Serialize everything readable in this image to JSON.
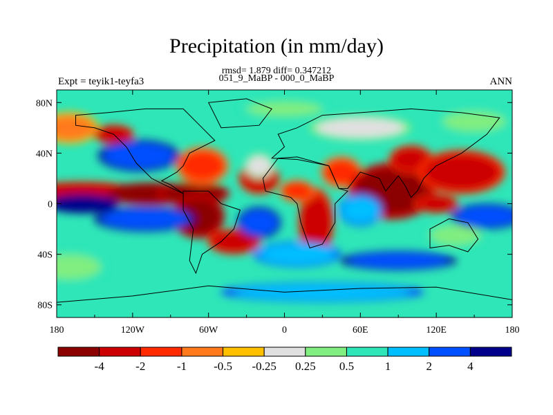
{
  "title": "Precipitation (in mm/day)",
  "stats_line": "rmsd= 1.879 diff= 0.347212",
  "period_line": "051_9_MaBP - 000_0_MaBP",
  "experiment_label": "Expt = teyik1-teyfa3",
  "season_label": "ANN",
  "lat_ticks": [
    "80N",
    "40N",
    "0",
    "40S",
    "80S"
  ],
  "lon_ticks": [
    "180",
    "120W",
    "60W",
    "0",
    "60E",
    "120E",
    "180"
  ],
  "colorbar": {
    "colors": [
      "#8b0000",
      "#cc0000",
      "#ff2a00",
      "#ff7a1a",
      "#ffc000",
      "#e0e0e0",
      "#80ee80",
      "#2ee6b8",
      "#00bfff",
      "#0050ff",
      "#00008b"
    ],
    "labels": [
      "-4",
      "-2",
      "-1",
      "-0.5",
      "-0.25",
      "0.25",
      "0.5",
      "1",
      "2",
      "4"
    ]
  },
  "field": {
    "background_level": 7,
    "blobs": [
      {
        "lon": -160,
        "lat": 10,
        "rlon": 40,
        "rlat": 6,
        "level": 1
      },
      {
        "lon": -105,
        "lat": 8,
        "rlon": 35,
        "rlat": 7,
        "level": 0
      },
      {
        "lon": -72,
        "lat": 8,
        "rlon": 25,
        "rlat": 7,
        "level": 0
      },
      {
        "lon": -68,
        "lat": -10,
        "rlon": 18,
        "rlat": 14,
        "level": 0
      },
      {
        "lon": -40,
        "lat": -30,
        "rlon": 18,
        "rlat": 8,
        "level": 1
      },
      {
        "lon": -65,
        "lat": 30,
        "rlon": 18,
        "rlat": 12,
        "level": 2
      },
      {
        "lon": -20,
        "lat": 20,
        "rlon": 14,
        "rlat": 10,
        "level": 1
      },
      {
        "lon": 25,
        "lat": -15,
        "rlon": 12,
        "rlat": 22,
        "level": 1
      },
      {
        "lon": 10,
        "lat": 10,
        "rlon": 12,
        "rlat": 7,
        "level": 2
      },
      {
        "lon": 45,
        "lat": 25,
        "rlon": 14,
        "rlat": 10,
        "level": 2
      },
      {
        "lon": 85,
        "lat": 10,
        "rlon": 30,
        "rlat": 18,
        "level": 0
      },
      {
        "lon": 100,
        "lat": 35,
        "rlon": 15,
        "rlat": 9,
        "level": 1
      },
      {
        "lon": 140,
        "lat": 25,
        "rlon": 30,
        "rlat": 14,
        "level": 1
      },
      {
        "lon": 120,
        "lat": 0,
        "rlon": 15,
        "rlat": 6,
        "level": 1
      },
      {
        "lon": 135,
        "lat": -25,
        "rlon": 20,
        "rlat": 8,
        "level": 6
      },
      {
        "lon": -170,
        "lat": 60,
        "rlon": 20,
        "rlat": 10,
        "level": 3
      },
      {
        "lon": -135,
        "lat": 55,
        "rlon": 14,
        "rlat": 6,
        "level": 1
      },
      {
        "lon": -115,
        "lat": 38,
        "rlon": 28,
        "rlat": 10,
        "level": 9
      },
      {
        "lon": -160,
        "lat": 0,
        "rlon": 25,
        "rlat": 6,
        "level": 10
      },
      {
        "lon": -110,
        "lat": -12,
        "rlon": 35,
        "rlat": 8,
        "level": 9
      },
      {
        "lon": -20,
        "lat": -15,
        "rlon": 15,
        "rlat": 10,
        "level": 9
      },
      {
        "lon": -20,
        "lat": 30,
        "rlon": 10,
        "rlat": 8,
        "level": 5
      },
      {
        "lon": 10,
        "lat": -40,
        "rlon": 30,
        "rlat": 8,
        "level": 8
      },
      {
        "lon": 60,
        "lat": -5,
        "rlon": 15,
        "rlat": 10,
        "level": 8
      },
      {
        "lon": 160,
        "lat": -10,
        "rlon": 25,
        "rlat": 8,
        "level": 9
      },
      {
        "lon": -170,
        "lat": -50,
        "rlon": 25,
        "rlat": 10,
        "level": 6
      },
      {
        "lon": 90,
        "lat": -45,
        "rlon": 40,
        "rlat": 6,
        "level": 9
      },
      {
        "lon": 0,
        "lat": 75,
        "rlon": 30,
        "rlat": 6,
        "level": 6
      },
      {
        "lon": 60,
        "lat": 60,
        "rlon": 35,
        "rlat": 8,
        "level": 5
      },
      {
        "lon": 150,
        "lat": 65,
        "rlon": 25,
        "rlat": 8,
        "level": 6
      },
      {
        "lon": 30,
        "lat": -70,
        "rlon": 70,
        "rlat": 6,
        "level": 8
      }
    ],
    "continents": [
      [
        [
          -165,
          70
        ],
        [
          -140,
          72
        ],
        [
          -110,
          75
        ],
        [
          -80,
          75
        ],
        [
          -65,
          60
        ],
        [
          -55,
          50
        ],
        [
          -75,
          40
        ],
        [
          -80,
          30
        ],
        [
          -85,
          25
        ],
        [
          -97,
          18
        ],
        [
          -90,
          15
        ],
        [
          -80,
          8
        ],
        [
          -95,
          15
        ],
        [
          -105,
          20
        ],
        [
          -117,
          32
        ],
        [
          -125,
          45
        ],
        [
          -135,
          55
        ],
        [
          -150,
          60
        ],
        [
          -165,
          62
        ]
      ],
      [
        [
          -80,
          10
        ],
        [
          -60,
          10
        ],
        [
          -50,
          0
        ],
        [
          -35,
          -5
        ],
        [
          -40,
          -20
        ],
        [
          -50,
          -30
        ],
        [
          -65,
          -40
        ],
        [
          -70,
          -55
        ],
        [
          -75,
          -45
        ],
        [
          -72,
          -20
        ],
        [
          -80,
          -5
        ]
      ],
      [
        [
          -50,
          60
        ],
        [
          -20,
          62
        ],
        [
          -10,
          75
        ],
        [
          -30,
          83
        ],
        [
          -60,
          80
        ]
      ],
      [
        [
          -10,
          36
        ],
        [
          0,
          45
        ],
        [
          -5,
          55
        ],
        [
          10,
          60
        ],
        [
          30,
          70
        ],
        [
          60,
          72
        ],
        [
          100,
          75
        ],
        [
          140,
          72
        ],
        [
          170,
          68
        ],
        [
          160,
          55
        ],
        [
          140,
          40
        ],
        [
          120,
          30
        ],
        [
          110,
          20
        ],
        [
          105,
          10
        ],
        [
          100,
          5
        ],
        [
          95,
          15
        ],
        [
          90,
          22
        ],
        [
          80,
          10
        ],
        [
          75,
          20
        ],
        [
          60,
          25
        ],
        [
          50,
          12
        ],
        [
          43,
          12
        ],
        [
          35,
          30
        ],
        [
          30,
          31
        ],
        [
          10,
          35
        ]
      ],
      [
        [
          -17,
          20
        ],
        [
          -15,
          10
        ],
        [
          5,
          5
        ],
        [
          10,
          0
        ],
        [
          13,
          -15
        ],
        [
          20,
          -35
        ],
        [
          30,
          -32
        ],
        [
          40,
          -15
        ],
        [
          40,
          0
        ],
        [
          50,
          10
        ],
        [
          43,
          12
        ],
        [
          35,
          30
        ],
        [
          10,
          37
        ],
        [
          -5,
          36
        ]
      ],
      [
        [
          115,
          -20
        ],
        [
          130,
          -12
        ],
        [
          145,
          -15
        ],
        [
          153,
          -28
        ],
        [
          145,
          -38
        ],
        [
          130,
          -33
        ],
        [
          115,
          -35
        ]
      ],
      [
        [
          -180,
          -78
        ],
        [
          -120,
          -73
        ],
        [
          -60,
          -65
        ],
        [
          0,
          -70
        ],
        [
          60,
          -67
        ],
        [
          120,
          -66
        ],
        [
          180,
          -76
        ],
        [
          180,
          -90
        ],
        [
          -180,
          -90
        ]
      ]
    ]
  }
}
